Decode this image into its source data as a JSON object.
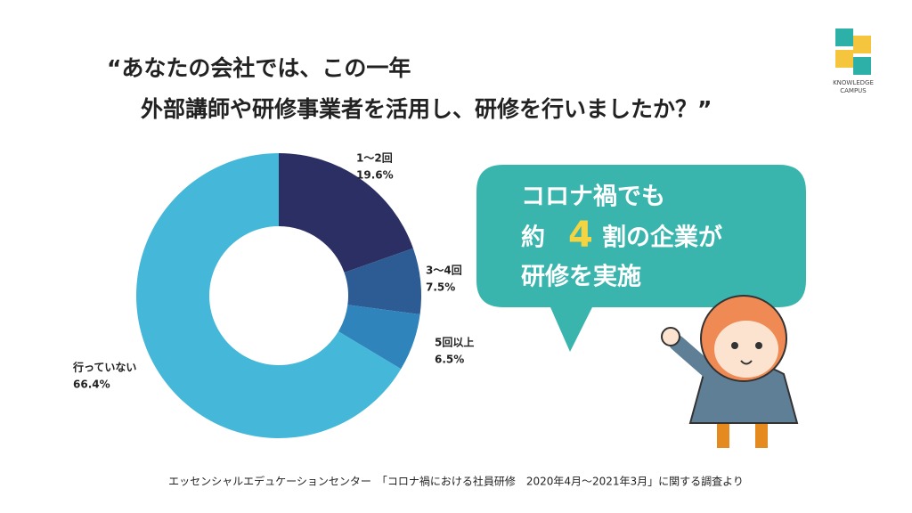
{
  "logo": {
    "name": "KNOWLEDGE",
    "sub": "CAMPUS"
  },
  "chart_data": {
    "type": "donut",
    "title": [
      "“あなたの会社では、この一年",
      "外部講師や研修事業者を活用し、研修を行いましたか？”"
    ],
    "categories": [
      "1〜2回",
      "3〜4回",
      "5回以上",
      "行っていない"
    ],
    "values": [
      19.6,
      7.5,
      6.5,
      66.4
    ],
    "value_labels": [
      "19.6%",
      "7.5%",
      "6.5%",
      "66.4%"
    ],
    "colors": [
      "#2b2f63",
      "#2d5b93",
      "#2f84bb",
      "#45b8d9"
    ],
    "source": "エッセンシャルエデュケーションセンター　「コロナ禍における社員研修　2020年4月〜2021年3月」に関する調査より"
  },
  "callout": {
    "line1": "コロナ禍でも",
    "pre": "約",
    "num": "4",
    "post": "割の企業が",
    "line3": "研修を実施"
  }
}
